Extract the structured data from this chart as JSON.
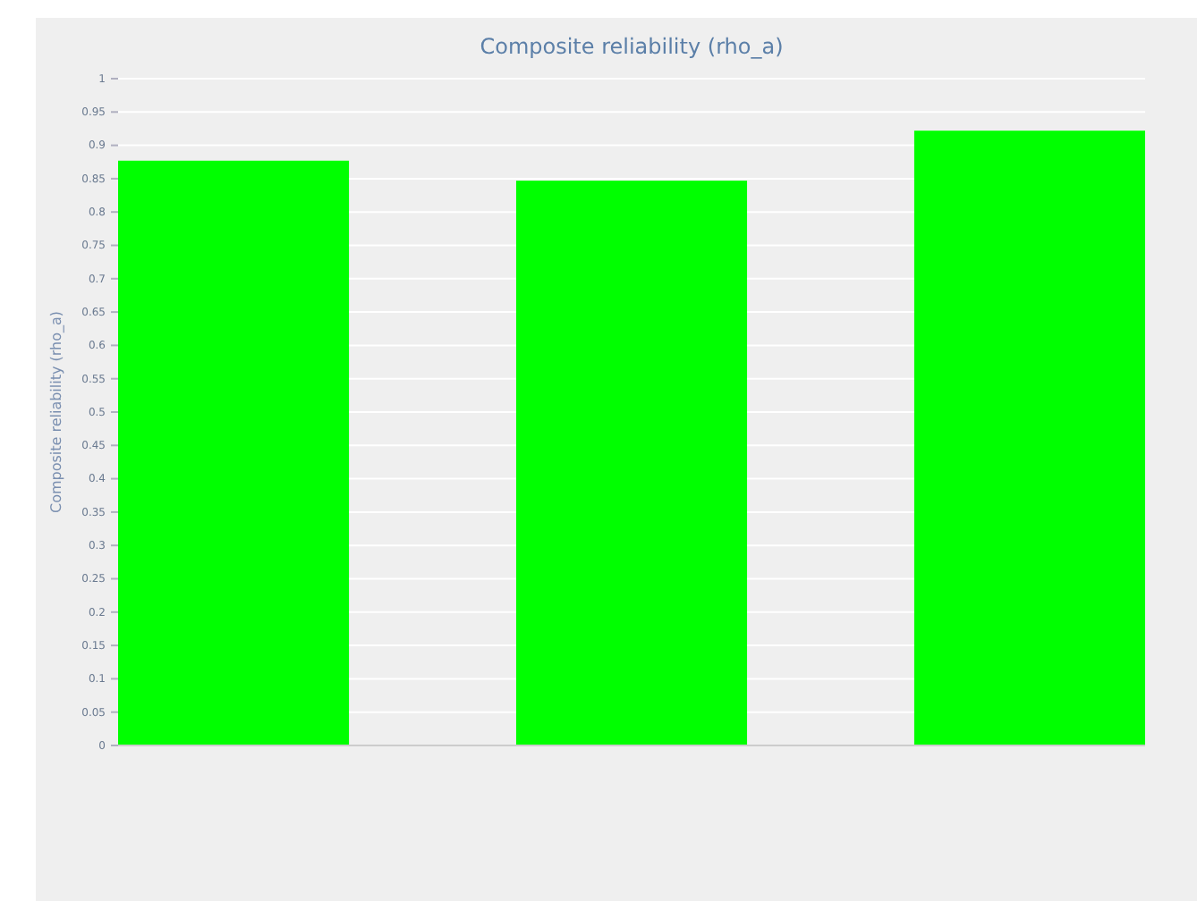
{
  "chart_data": {
    "type": "bar",
    "title": "Composite reliability (rho_a)",
    "ylabel": "Composite reliability (rho_a)",
    "categories": [
      null,
      null,
      null
    ],
    "values": [
      0.877,
      0.847,
      0.922
    ],
    "color": "#00ff00",
    "ylim": [
      0,
      1
    ],
    "yticks": [
      0,
      0.05,
      0.1,
      0.15,
      0.2,
      0.25,
      0.3,
      0.35,
      0.4,
      0.45,
      0.5,
      0.55,
      0.6,
      0.65,
      0.7,
      0.75,
      0.8,
      0.85,
      0.9,
      0.95,
      1
    ],
    "grid": "y"
  }
}
